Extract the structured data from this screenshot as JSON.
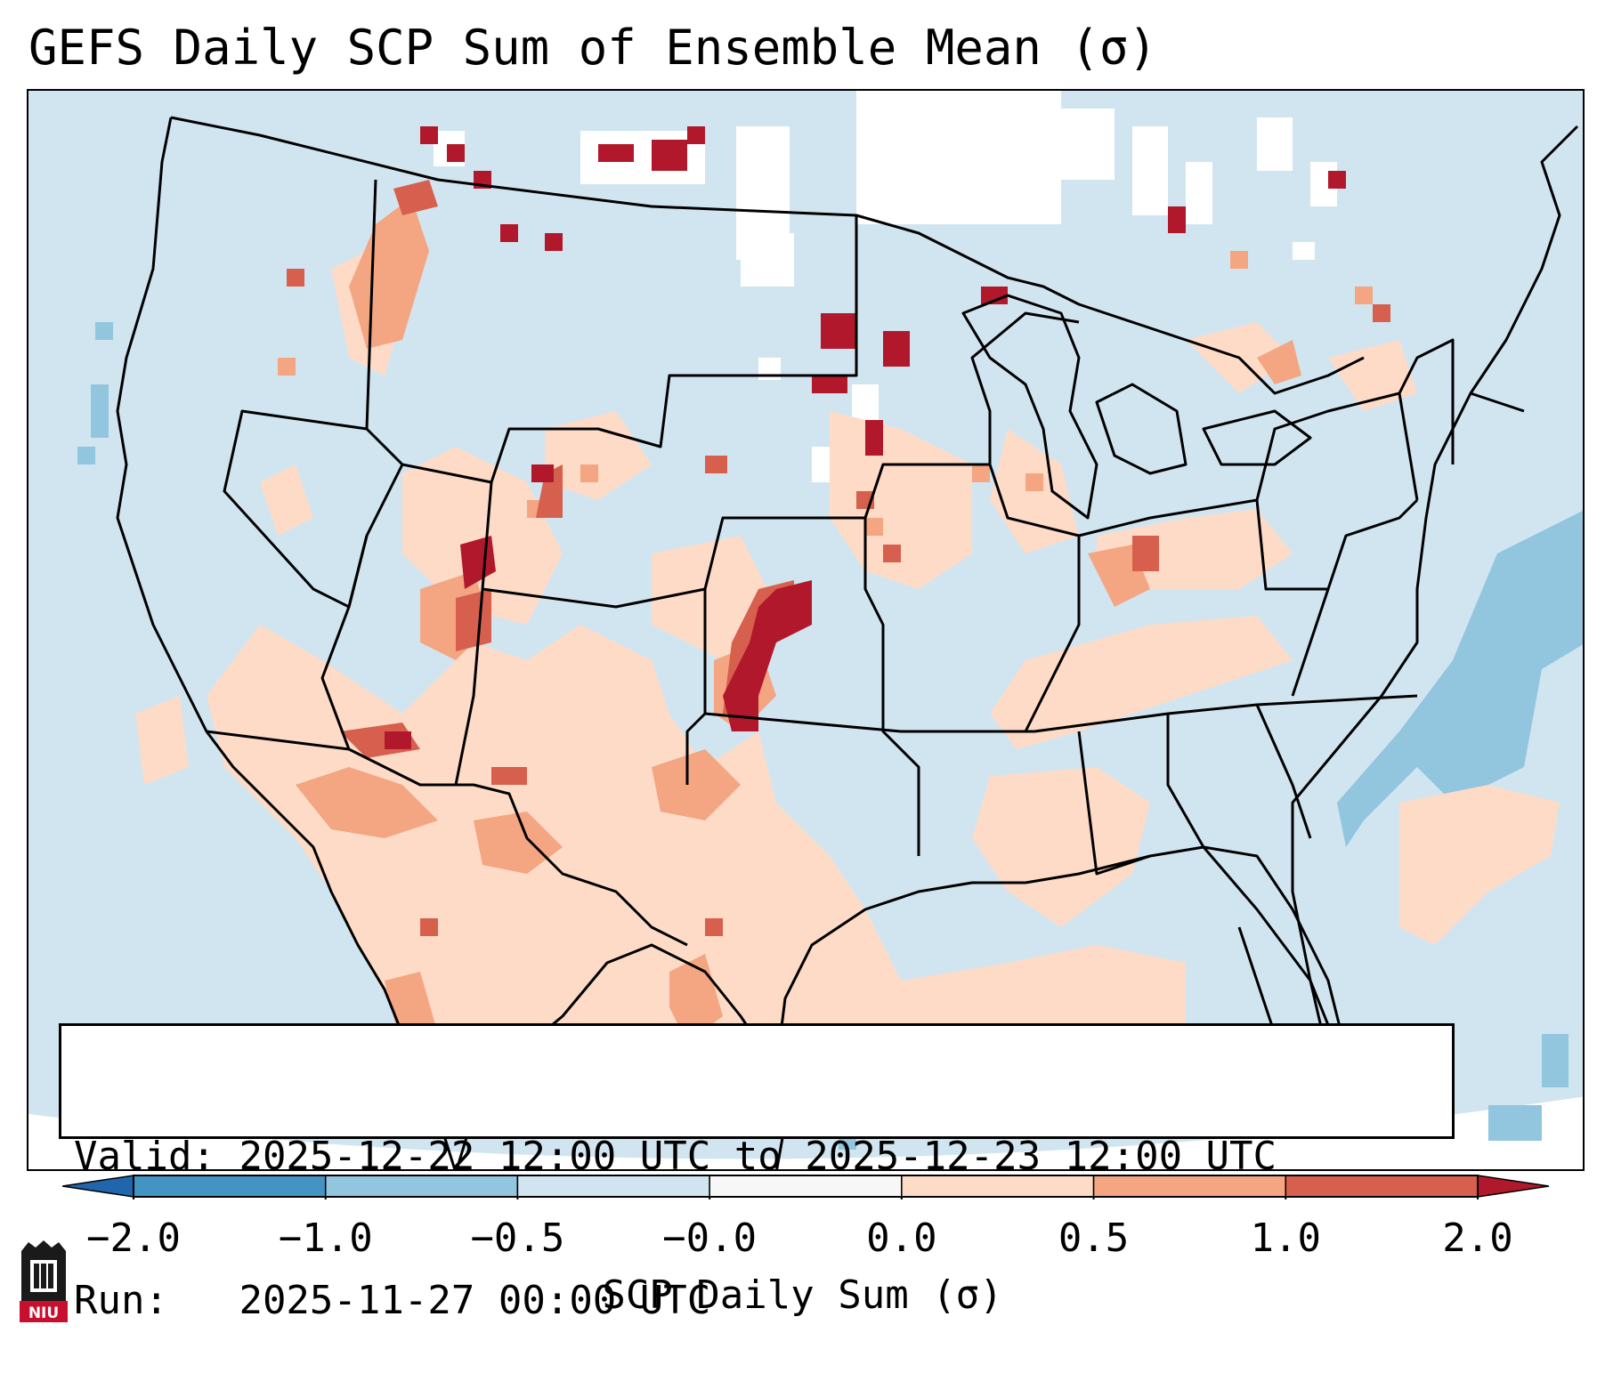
{
  "title": "GEFS Daily SCP Sum of Ensemble Mean (σ)",
  "info": {
    "valid_label": "Valid:",
    "valid_value": "2025-12-22 12:00 UTC to 2025-12-23 12:00 UTC",
    "run_label": "Run:",
    "run_value": "2025-11-27 00:00 UTC"
  },
  "colorbar": {
    "label": "SCP Daily Sum (σ)",
    "ticks": [
      "−2.0",
      "−1.0",
      "−0.5",
      "−0.0",
      "0.0",
      "0.5",
      "1.0",
      "2.0"
    ],
    "bins": [
      {
        "range": "< -2.0",
        "color": "#2166ac"
      },
      {
        "range": "-2.0 to -1.0",
        "color": "#4393c3"
      },
      {
        "range": "-1.0 to -0.5",
        "color": "#92c5de"
      },
      {
        "range": "-0.5 to -0.0",
        "color": "#d1e5f0"
      },
      {
        "range": "-0.0 to 0.0",
        "color": "#f7f7f7"
      },
      {
        "range": "0.0 to 0.5",
        "color": "#fddbc7"
      },
      {
        "range": "0.5 to 1.0",
        "color": "#f4a582"
      },
      {
        "range": "1.0 to 2.0",
        "color": "#d6604d"
      },
      {
        "range": "> 2.0",
        "color": "#b2182b"
      }
    ]
  },
  "colors": {
    "background_field": "#d1e5f0",
    "near_zero": "#ffffff",
    "light_positive": "#fddbc7",
    "moderate_positive": "#f4a582",
    "high_positive": "#d6604d",
    "very_high_positive": "#b2182b",
    "moderate_negative": "#92c5de"
  },
  "logo": {
    "text": "NIU",
    "icon": "niu-logo-icon"
  }
}
